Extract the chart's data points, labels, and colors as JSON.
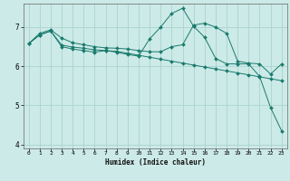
{
  "xlabel": "Humidex (Indice chaleur)",
  "bg_color": "#cceae7",
  "grid_color": "#aad4d0",
  "line_color": "#1a7a6e",
  "xlim": [
    -0.5,
    23.5
  ],
  "ylim": [
    3.9,
    7.6
  ],
  "yticks": [
    4,
    5,
    6,
    7
  ],
  "xticks": [
    0,
    1,
    2,
    3,
    4,
    5,
    6,
    7,
    8,
    9,
    10,
    11,
    12,
    13,
    14,
    15,
    16,
    17,
    18,
    19,
    20,
    21,
    22,
    23
  ],
  "series1_x": [
    0,
    1,
    2,
    3,
    4,
    5,
    6,
    7,
    8,
    9,
    10,
    11,
    12,
    13,
    14,
    15,
    16,
    17,
    18,
    19,
    20,
    21,
    22,
    23
  ],
  "series1_y": [
    6.58,
    6.84,
    6.93,
    6.72,
    6.6,
    6.55,
    6.5,
    6.47,
    6.46,
    6.44,
    6.4,
    6.37,
    6.37,
    6.5,
    6.55,
    7.05,
    7.1,
    7.0,
    6.84,
    6.13,
    6.08,
    6.06,
    5.8,
    6.06
  ],
  "series2_x": [
    0,
    1,
    2,
    3,
    4,
    5,
    6,
    7,
    8,
    9,
    10,
    11,
    12,
    13,
    14,
    15,
    16,
    17,
    18,
    19,
    20,
    21,
    22,
    23
  ],
  "series2_y": [
    6.58,
    6.8,
    6.9,
    6.54,
    6.49,
    6.46,
    6.42,
    6.4,
    6.38,
    6.33,
    6.28,
    6.23,
    6.18,
    6.13,
    6.08,
    6.03,
    5.98,
    5.93,
    5.88,
    5.83,
    5.78,
    5.73,
    5.68,
    5.63
  ],
  "series3_x": [
    0,
    1,
    2,
    3,
    4,
    5,
    6,
    7,
    8,
    9,
    10,
    11,
    12,
    13,
    14,
    15,
    16,
    17,
    18,
    19,
    20,
    21,
    22,
    23
  ],
  "series3_y": [
    6.58,
    6.8,
    6.9,
    6.5,
    6.44,
    6.4,
    6.36,
    6.4,
    6.36,
    6.3,
    6.26,
    6.7,
    7.0,
    7.35,
    7.48,
    7.02,
    6.74,
    6.2,
    6.06,
    6.06,
    6.06,
    5.74,
    4.94,
    4.35
  ]
}
